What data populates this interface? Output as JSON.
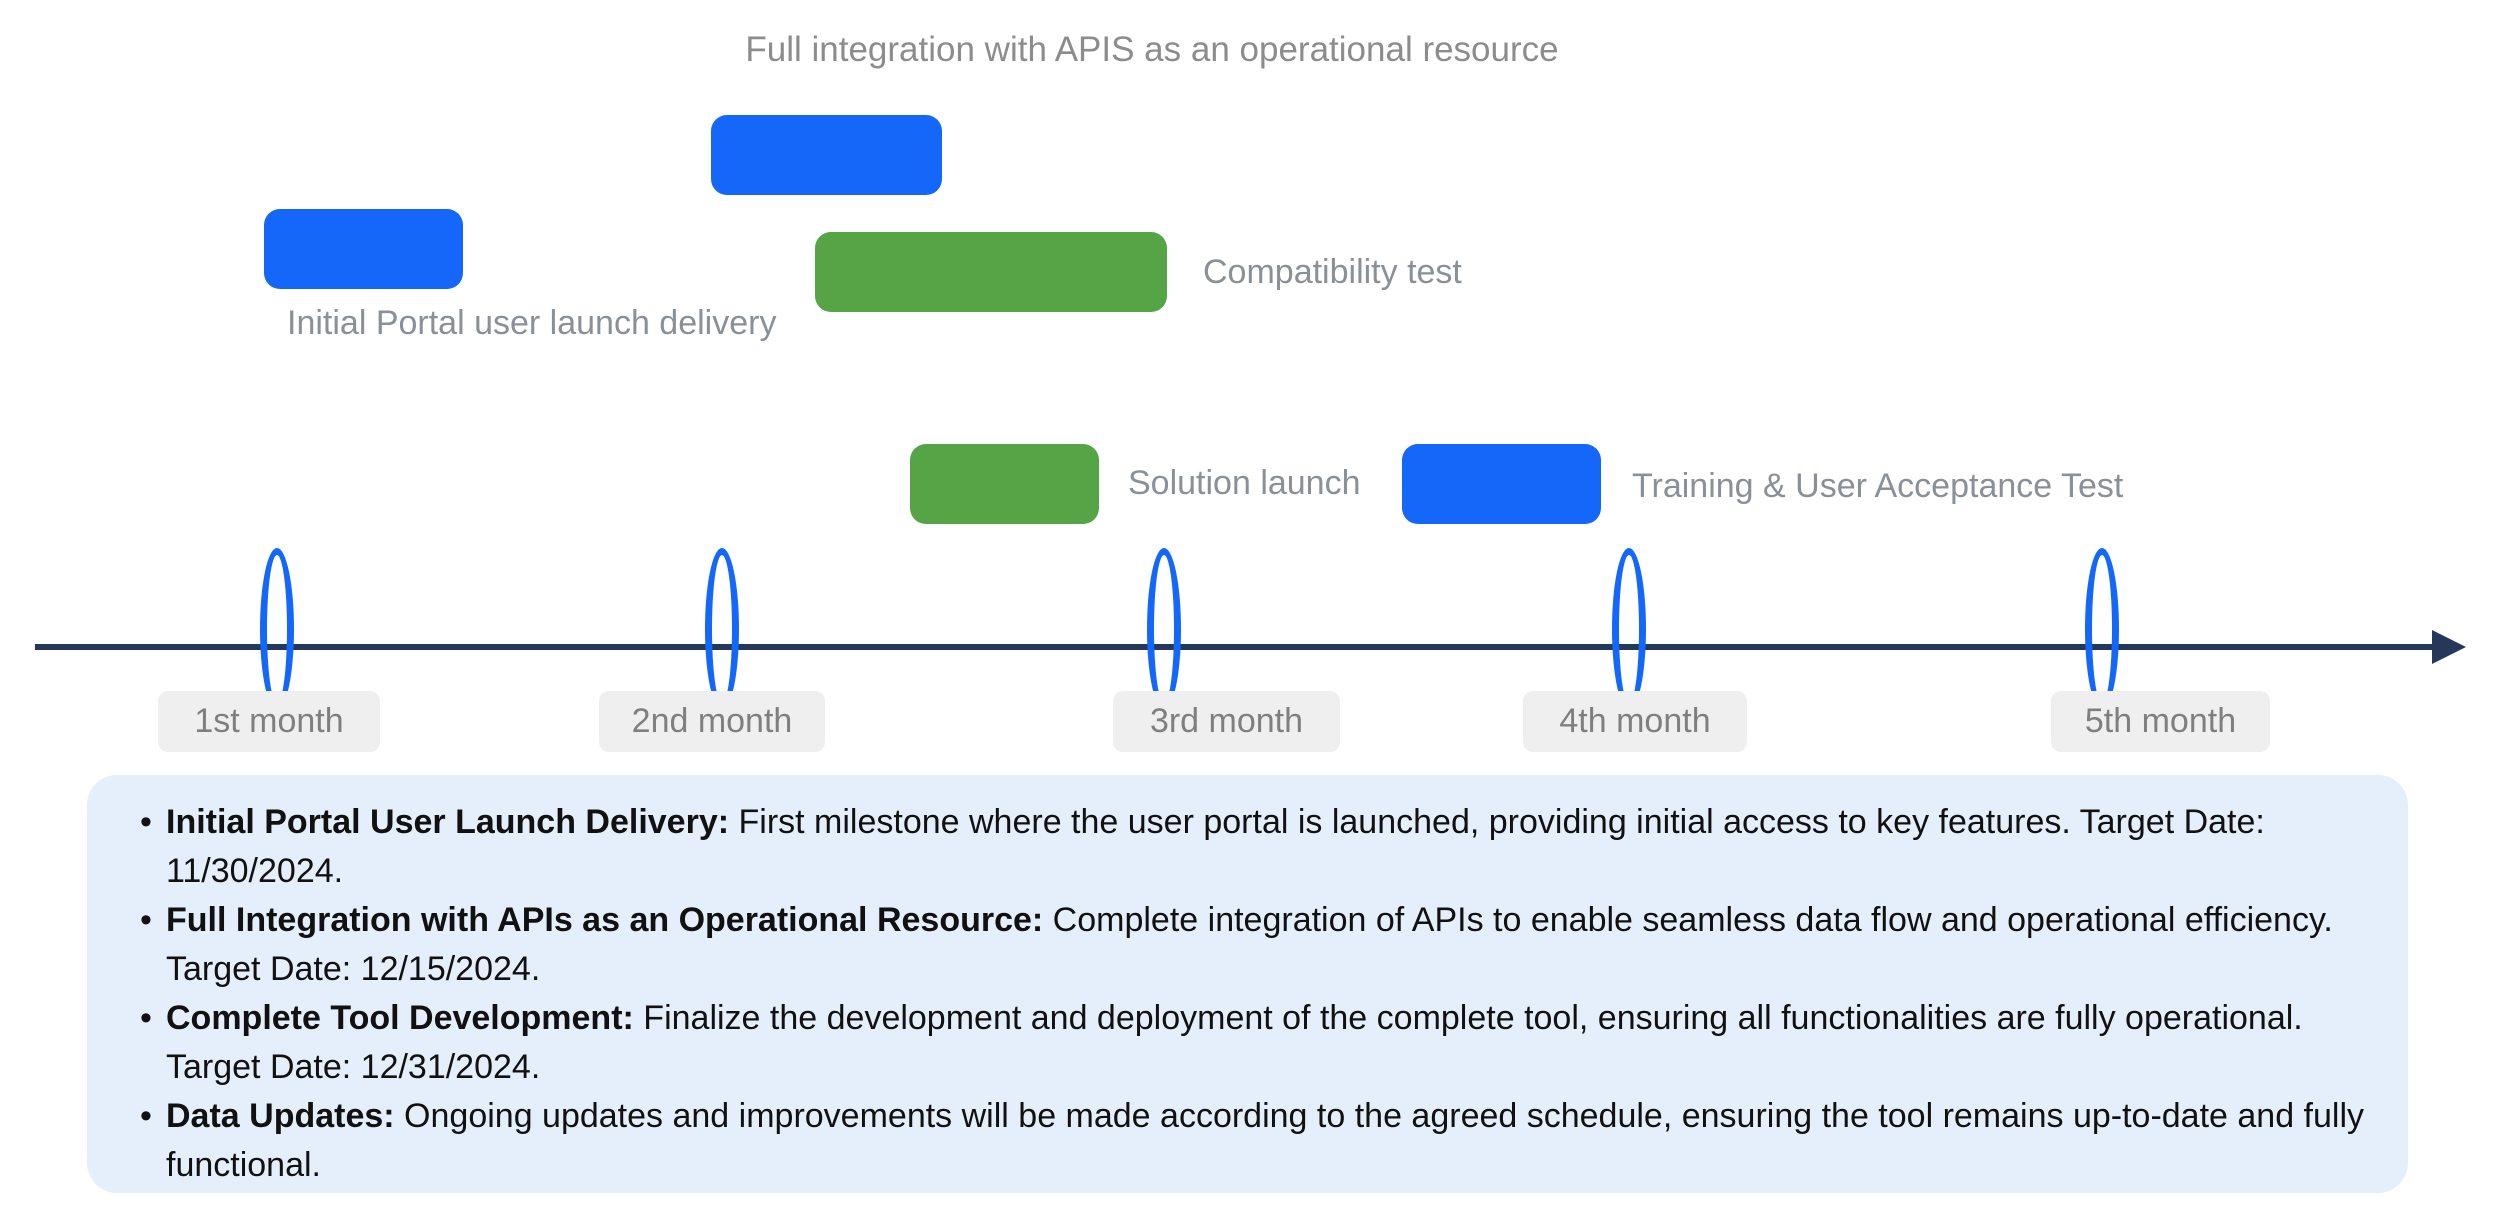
{
  "title": "Full integration with APIS as an operational resource",
  "colors": {
    "bar_blue": "#1567FA",
    "bar_green": "#55A445",
    "timeline_line": "#24385C",
    "loop_stroke": "#1467FB",
    "month_pill_bg": "#EFEFEF",
    "month_pill_text": "#7F7F7F",
    "bar_label_text": "#8A9098",
    "title_text": "#8C8C8C",
    "notes_box_bg": "#E5EFFC",
    "notes_text": "#111111"
  },
  "diagram": {
    "milestone_bars": [
      {
        "id": "initial-portal-user-launch-delivery",
        "color": "blue",
        "label": "Initial Portal user launch delivery",
        "label_position": "below"
      },
      {
        "id": "full-integration-with-apis",
        "color": "blue",
        "label": "",
        "label_position": "title-above"
      },
      {
        "id": "compatibility-test",
        "color": "green",
        "label": "Compatibility test",
        "label_position": "right"
      },
      {
        "id": "solution-launch",
        "color": "green",
        "label": "Solution launch",
        "label_position": "right"
      },
      {
        "id": "training-user-acceptance-test",
        "color": "blue",
        "label": "Training & User Acceptance Test",
        "label_position": "right"
      }
    ],
    "timeline_months": [
      "1st month",
      "2nd month",
      "3rd month",
      "4th month",
      "5th month"
    ]
  },
  "notes": {
    "items": [
      {
        "title": "Initial Portal User Launch Delivery:",
        "line1": " First milestone where the user portal is launched, providing initial access to key features. Target Date:",
        "line2": "11/30/2024."
      },
      {
        "title": "Full Integration with APIs as an Operational Resource:",
        "line1": " Complete integration of APIs to enable seamless data flow and operational efficiency.",
        "line2": "Target Date: 12/15/2024."
      },
      {
        "title": "Complete Tool Development:",
        "line1": " Finalize the development and deployment of the complete tool, ensuring all functionalities are fully operational.",
        "line2": "Target Date: 12/31/2024."
      },
      {
        "title": "Data Updates:",
        "line1": " Ongoing updates and improvements will be made according to the agreed schedule, ensuring the tool remains up-to-date and fully",
        "line2": "functional."
      }
    ]
  }
}
